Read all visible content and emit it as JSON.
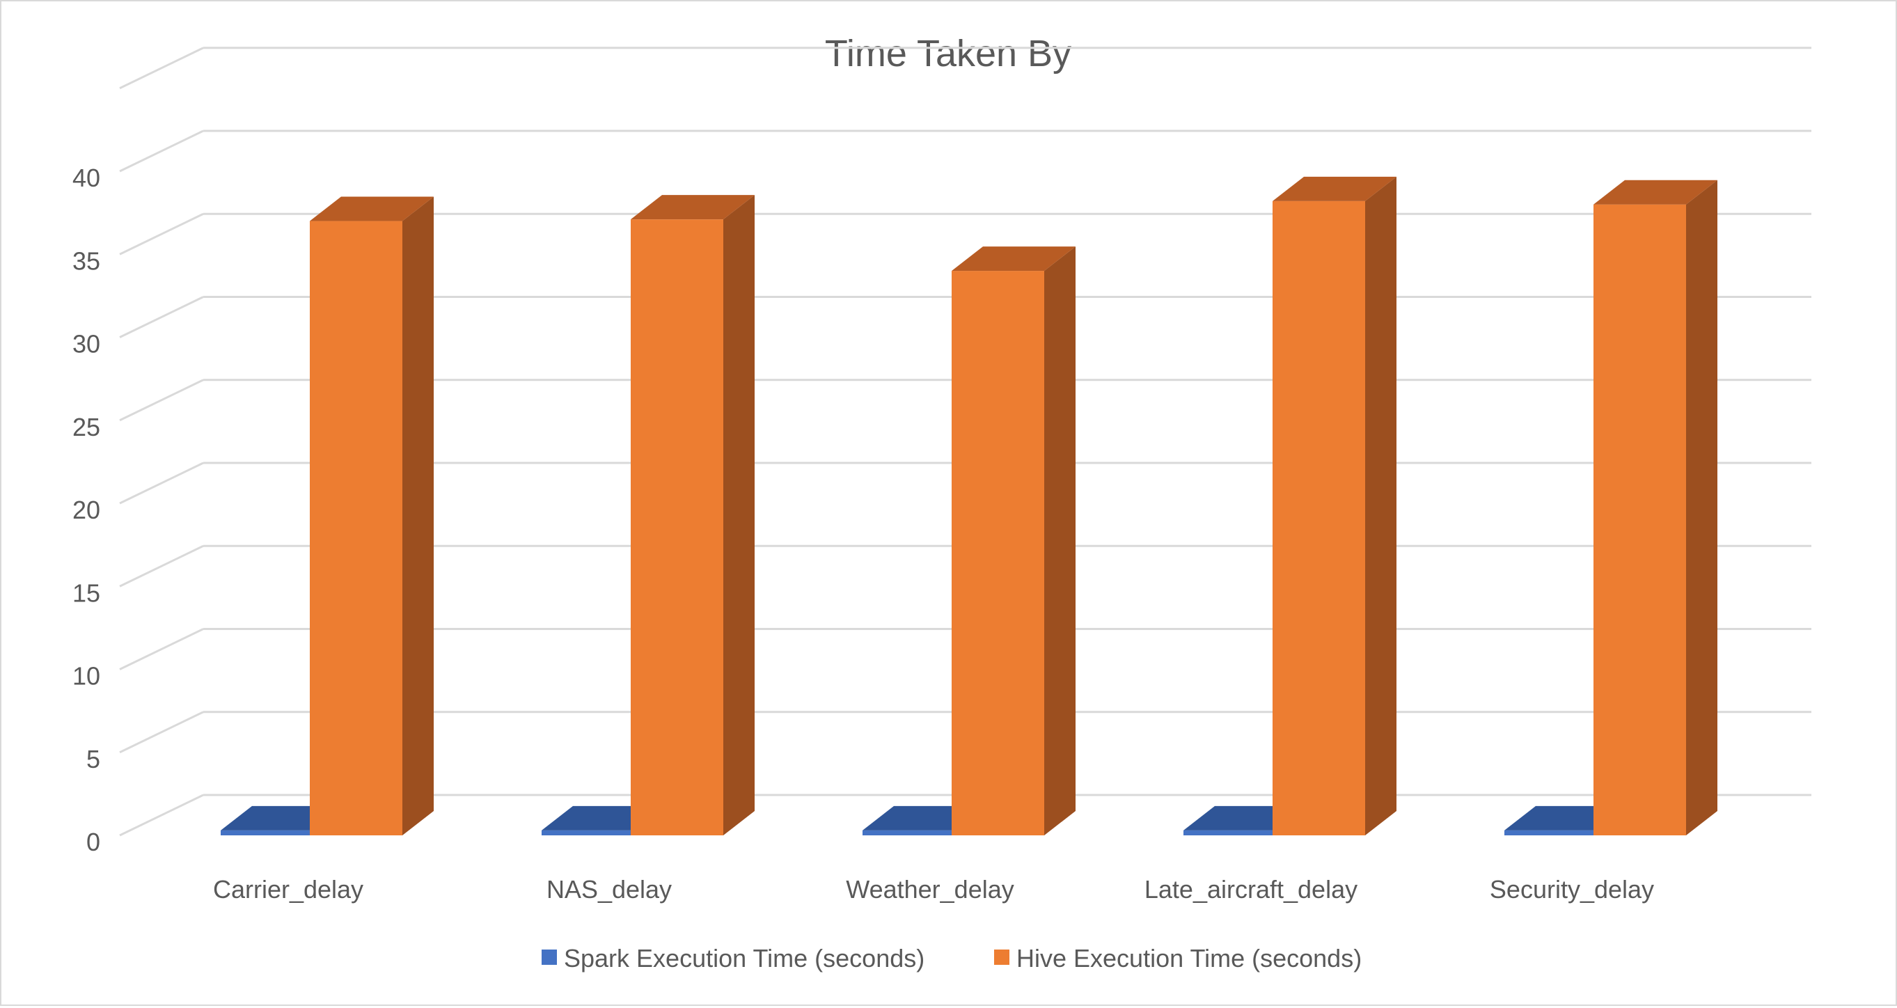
{
  "chart_data": {
    "type": "bar",
    "title": "Time Taken By",
    "xlabel": "",
    "ylabel": "",
    "ylim": [
      0,
      45
    ],
    "yticks": [
      0,
      5,
      10,
      15,
      20,
      25,
      30,
      35,
      40
    ],
    "grid": true,
    "style": "3d-clustered-column",
    "legend_position": "bottom",
    "categories": [
      "Carrier_delay",
      "NAS_delay",
      "Weather_delay",
      "Late_aircraft_delay",
      "Security_delay"
    ],
    "series": [
      {
        "name": "Spark Execution Time (seconds)",
        "color": "#4472c4",
        "values": [
          0.3,
          0.3,
          0.3,
          0.3,
          0.3
        ]
      },
      {
        "name": "Hive Execution Time (seconds)",
        "color": "#ed7d31",
        "values": [
          37,
          37.1,
          34,
          38.2,
          38
        ]
      }
    ]
  },
  "colors": {
    "hive_front": "#ed7d31",
    "hive_side": "#9c4f1f",
    "hive_top": "#b85c24",
    "spark_top": "#2f5597",
    "grid": "#d9d9d9",
    "text": "#595959"
  }
}
